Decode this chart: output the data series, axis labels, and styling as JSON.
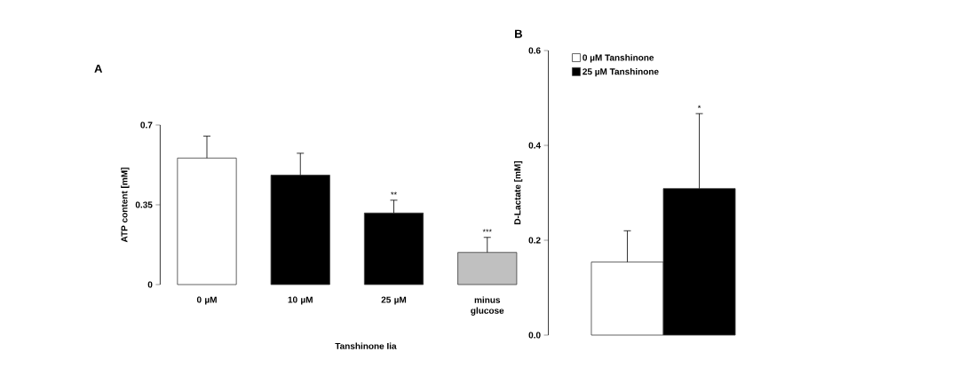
{
  "chart_data": [
    {
      "type": "bar",
      "title": "A",
      "xlabel": "Tanshinone Iia",
      "ylabel": "ATP content [mM]",
      "categories": [
        "0 µM",
        "10 µM",
        "25 µM",
        "minus glucose"
      ],
      "values": [
        0.555,
        0.48,
        0.314,
        0.141
      ],
      "colors": [
        "#ffffff",
        "#000000",
        "#000000",
        "#c0c0c0"
      ],
      "errors": [
        [
          0.555,
          0.651
        ],
        [
          0.48,
          0.576
        ],
        [
          0.314,
          0.37
        ],
        [
          0.141,
          0.207
        ]
      ],
      "value_labels": [
        null,
        null,
        "**",
        "***"
      ],
      "ylim": [
        0,
        0.7
      ],
      "yticks": [
        0,
        0.35,
        0.7
      ],
      "legend": false,
      "grid": false
    },
    {
      "type": "bar",
      "title": "B",
      "ylabel": "D-Lactate [mM]",
      "categories": [
        null
      ],
      "series": [
        {
          "name": "0 µM Tanshinone",
          "color": "#ffffff",
          "values": [
            0.154
          ],
          "errors": [
            [
              0.154,
              0.22
            ]
          ]
        },
        {
          "name": "25 µM Tanshinone",
          "color": "#000000",
          "values": [
            0.309
          ],
          "errors": [
            [
              0.309,
              0.467
            ]
          ]
        }
      ],
      "ylim": [
        0,
        0.6
      ],
      "yticks": [
        {
          "value": 0,
          "label": "0.0"
        },
        0.2,
        0.4,
        0.6
      ],
      "legend": "top left",
      "grid": false,
      "annotations": [
        "*"
      ]
    }
  ]
}
